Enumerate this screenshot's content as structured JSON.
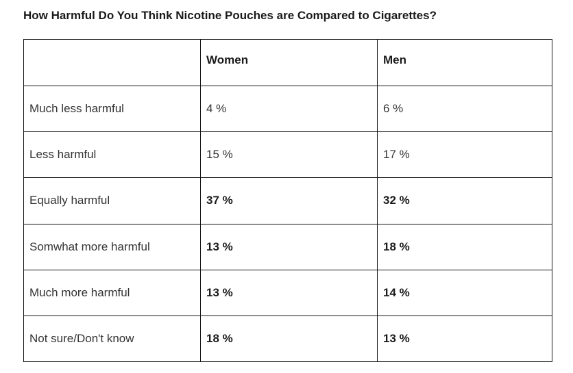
{
  "chart_data": {
    "type": "table",
    "title": "How Harmful Do You Think Nicotine Pouches are Compared to Cigarettes?",
    "columns": [
      "",
      "Women",
      "Men"
    ],
    "rows": [
      {
        "label": "Much less harmful",
        "women": "4 %",
        "men": "6 %",
        "women_bold": false,
        "men_bold": false
      },
      {
        "label": "Less harmful",
        "women": "15 %",
        "men": "17 %",
        "women_bold": false,
        "men_bold": false
      },
      {
        "label": "Equally harmful",
        "women": "37 %",
        "men": "32 %",
        "women_bold": true,
        "men_bold": true
      },
      {
        "label": "Somwhat more harmful",
        "women": "13 %",
        "men": "18 %",
        "women_bold": true,
        "men_bold": true
      },
      {
        "label": "Much more harmful",
        "women": "13 %",
        "men": "14 %",
        "women_bold": true,
        "men_bold": true
      },
      {
        "label": "Not sure/Don't know",
        "women": "18 %",
        "men": "13 %",
        "women_bold": true,
        "men_bold": true
      }
    ]
  }
}
